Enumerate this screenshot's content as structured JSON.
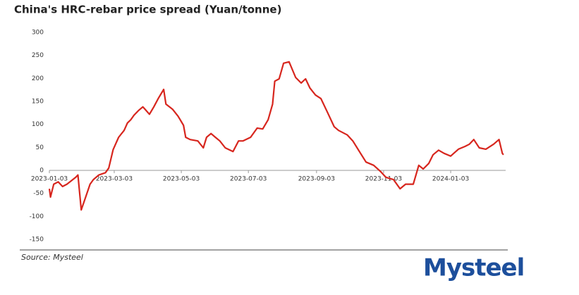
{
  "chart_data": {
    "type": "line",
    "title": "China's HRC-rebar price spread (Yuan/tonne)",
    "source": "Source: Mysteel",
    "logo": "Mysteel",
    "x": [
      "2023-01-03",
      "2023-01-04",
      "2023-01-07",
      "2023-01-11",
      "2023-01-15",
      "2023-01-19",
      "2023-01-27",
      "2023-01-29",
      "2023-02-01",
      "2023-02-04",
      "2023-02-09",
      "2023-02-12",
      "2023-02-17",
      "2023-02-23",
      "2023-02-26",
      "2023-03-02",
      "2023-03-07",
      "2023-03-12",
      "2023-03-15",
      "2023-03-18",
      "2023-03-21",
      "2023-03-25",
      "2023-03-29",
      "2023-03-31",
      "2023-04-04",
      "2023-04-08",
      "2023-04-12",
      "2023-04-17",
      "2023-04-19",
      "2023-04-25",
      "2023-04-30",
      "2023-05-05",
      "2023-05-07",
      "2023-05-11",
      "2023-05-18",
      "2023-05-23",
      "2023-05-26",
      "2023-05-30",
      "2023-06-03",
      "2023-06-07",
      "2023-06-12",
      "2023-06-19",
      "2023-06-24",
      "2023-06-28",
      "2023-07-05",
      "2023-07-11",
      "2023-07-16",
      "2023-07-21",
      "2023-07-25",
      "2023-07-27",
      "2023-07-31",
      "2023-08-04",
      "2023-08-09",
      "2023-08-15",
      "2023-08-20",
      "2023-08-24",
      "2023-08-28",
      "2023-09-02",
      "2023-09-07",
      "2023-09-13",
      "2023-09-19",
      "2023-09-23",
      "2023-10-01",
      "2023-10-06",
      "2023-10-12",
      "2023-10-18",
      "2023-10-25",
      "2023-10-31",
      "2023-11-05",
      "2023-11-12",
      "2023-11-18",
      "2023-11-23",
      "2023-11-30",
      "2023-12-05",
      "2023-12-09",
      "2023-12-14",
      "2023-12-18",
      "2023-12-23",
      "2023-12-28",
      "2024-01-03",
      "2024-01-10",
      "2024-01-16",
      "2024-01-20",
      "2024-01-24",
      "2024-01-29",
      "2024-02-04",
      "2024-02-11",
      "2024-02-16",
      "2024-02-19",
      "2024-02-20"
    ],
    "series": [
      {
        "name": "HRC-rebar spread",
        "color": "#d7261e",
        "values": [
          -40,
          -58,
          -30,
          -25,
          -35,
          -30,
          -15,
          -10,
          -86,
          -65,
          -30,
          -20,
          -10,
          -5,
          5,
          45,
          72,
          87,
          103,
          110,
          120,
          130,
          138,
          133,
          122,
          138,
          156,
          176,
          144,
          133,
          118,
          98,
          72,
          67,
          64,
          49,
          72,
          80,
          72,
          64,
          49,
          41,
          64,
          64,
          72,
          92,
          90,
          110,
          144,
          194,
          199,
          233,
          236,
          202,
          190,
          199,
          179,
          164,
          156,
          126,
          95,
          87,
          77,
          64,
          41,
          18,
          11,
          -2,
          -15,
          -20,
          -40,
          -30,
          -30,
          11,
          3,
          15,
          34,
          44,
          37,
          31,
          46,
          52,
          57,
          67,
          49,
          46,
          57,
          67,
          37,
          34
        ]
      }
    ],
    "xlim": [
      "2023-01-03",
      "2024-02-22"
    ],
    "xticks": [
      "2023-01-03",
      "2023-03-03",
      "2023-05-03",
      "2023-07-03",
      "2023-09-03",
      "2023-11-03",
      "2024-01-03"
    ],
    "ylim": [
      -150,
      300
    ],
    "yticks": [
      -150,
      -100,
      -50,
      0,
      50,
      100,
      150,
      200,
      250,
      300
    ],
    "grid": false
  }
}
